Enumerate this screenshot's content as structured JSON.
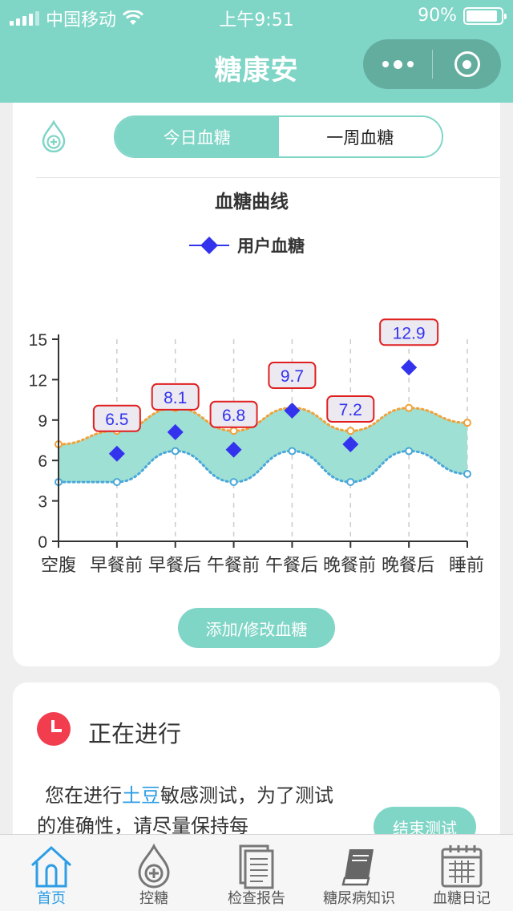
{
  "status_bar": {
    "carrier": "中国移动",
    "time": "上午9:51",
    "battery": "90%",
    "battery_level": 0.9
  },
  "nav": {
    "title": "糖康安",
    "more_icon": "more-dots-icon",
    "close_icon": "target-circle-icon"
  },
  "segmented": {
    "options": [
      "今日血糖",
      "一周血糖"
    ],
    "selected": 0
  },
  "chart_data": {
    "type": "line",
    "title": "血糖曲线",
    "categories": [
      "空腹",
      "早餐前",
      "早餐后",
      "午餐前",
      "午餐后",
      "晚餐前",
      "晚餐后",
      "睡前"
    ],
    "series": [
      {
        "name": "用户血糖",
        "values": [
          null,
          6.5,
          8.1,
          6.8,
          9.7,
          7.2,
          12.9,
          null
        ],
        "color": "#3333ee"
      }
    ],
    "band_upper": [
      7.2,
      8.2,
      9.9,
      8.2,
      9.9,
      8.2,
      9.9,
      8.8
    ],
    "band_lower": [
      4.4,
      4.4,
      6.7,
      4.4,
      6.7,
      4.4,
      6.7,
      5.0
    ],
    "band_color": "#9fe0d4",
    "upper_color": "#f0a23a",
    "lower_color": "#4aa8d8",
    "ylim": [
      0,
      15
    ],
    "yticks": [
      "0",
      "3",
      "6",
      "9",
      "12",
      "15"
    ],
    "grid": "vertical dashed",
    "legend": "top-center"
  },
  "actions": {
    "edit_label": "添加/修改血糖",
    "end_label": "结束测试"
  },
  "progress": {
    "heading": "正在进行",
    "text_before": "您在进行",
    "highlight": "土豆",
    "text_after": "敏感测试，为了测试的准确性，请尽量保持每"
  },
  "tabs": [
    {
      "label": "首页",
      "icon": "home-icon"
    },
    {
      "label": "控糖",
      "icon": "blood-drop-plus-icon"
    },
    {
      "label": "检查报告",
      "icon": "document-icon"
    },
    {
      "label": "糖尿病知识",
      "icon": "book-icon"
    },
    {
      "label": "血糖日记",
      "icon": "calendar-icon"
    }
  ]
}
